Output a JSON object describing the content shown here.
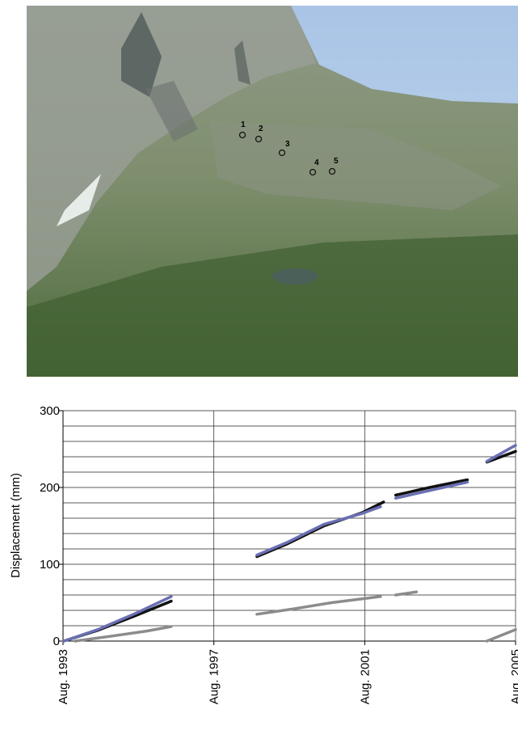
{
  "photo": {
    "markers": [
      "1",
      "2",
      "3",
      "4",
      "5"
    ]
  },
  "chart_data": {
    "type": "line",
    "y_label": "Displacement (mm)",
    "xlim": [
      1993.58,
      2005.58
    ],
    "xticks": [
      {
        "value": 1993.58,
        "label": "Aug. 1993"
      },
      {
        "value": 1997.58,
        "label": "Aug. 1997"
      },
      {
        "value": 2001.58,
        "label": "Aug. 2001"
      },
      {
        "value": 2005.58,
        "label": "Aug. 2005"
      }
    ],
    "ylim": [
      0,
      300
    ],
    "yticks": [
      0,
      100,
      200,
      300
    ],
    "ygrid": [
      20,
      40,
      60,
      80,
      100,
      120,
      140,
      160,
      180,
      200,
      220,
      240,
      260,
      280,
      300
    ],
    "grid": true,
    "series": [
      {
        "color": "#111111",
        "x": [
          1993.6,
          1994.5,
          1995.5,
          1996.45,
          null,
          1998.72,
          1999.5,
          2000.5,
          2001.5,
          2002.08,
          null,
          2002.4,
          2003.3,
          2004.3,
          null,
          2004.82,
          2005.58
        ],
        "values": [
          0,
          14,
          33,
          52,
          null,
          110,
          126,
          150,
          167,
          181,
          null,
          190,
          200,
          210,
          null,
          233,
          247
        ]
      },
      {
        "color": "#6a6fb3",
        "x": [
          1993.6,
          1994.5,
          1995.5,
          1996.45,
          null,
          1998.72,
          1999.5,
          2000.5,
          2001.5,
          2002.0,
          null,
          2002.4,
          2003.3,
          2004.3,
          null,
          2004.82,
          2005.58
        ],
        "values": [
          0,
          15,
          36,
          58,
          null,
          112,
          128,
          152,
          166,
          175,
          null,
          186,
          196,
          207,
          null,
          234,
          255
        ]
      },
      {
        "color": "#8c8c8c",
        "x": [
          1993.9,
          1994.8,
          1995.8,
          1996.45,
          null,
          1998.72,
          1999.7,
          2000.7,
          2002.0,
          null,
          2002.4,
          2002.95,
          null,
          2004.82,
          2005.58
        ],
        "values": [
          0,
          6,
          13,
          19,
          null,
          35,
          42,
          50,
          58,
          null,
          60,
          64,
          null,
          0,
          15
        ]
      }
    ]
  }
}
